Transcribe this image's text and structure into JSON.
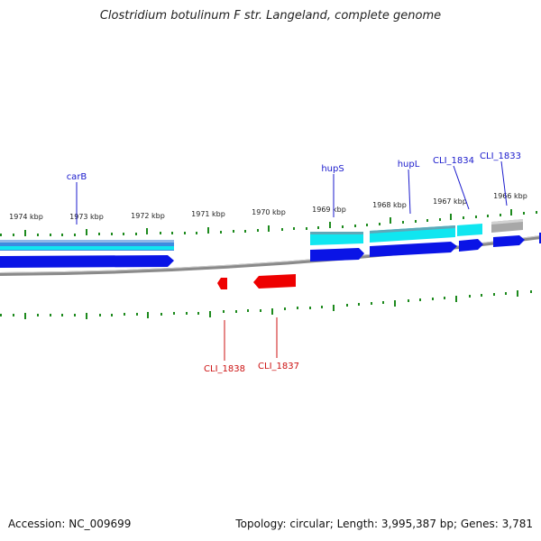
{
  "title": "Clostridium botulinum F str. Langeland, complete genome",
  "footer": {
    "accession": "Accession: NC_009699",
    "summary": "Topology: circular; Length: 3,995,387 bp; Genes: 3,781"
  },
  "kbp_ticks": [
    "1974 kbp",
    "1973 kbp",
    "1972 kbp",
    "1971 kbp",
    "1970 kbp",
    "1969 kbp",
    "1968 kbp",
    "1967 kbp",
    "1966 kbp"
  ],
  "forward_genes": [
    "carB",
    "hupS",
    "hupL",
    "CLI_1834",
    "CLI_1833"
  ],
  "reverse_genes": [
    "CLI_1838",
    "CLI_1837"
  ],
  "colors": {
    "forward_label": "#1a1acc",
    "reverse_label": "#cc1111",
    "cds_blue": "#0a14e6",
    "gene_cyan": "#10e6f0",
    "gene_blue_steel": "#3c8ce0",
    "gene_grey": "#a8a8a8",
    "reverse_red": "#ee0000",
    "tick_green": "#1d8a1d",
    "backbone": "#8a8a8a"
  }
}
